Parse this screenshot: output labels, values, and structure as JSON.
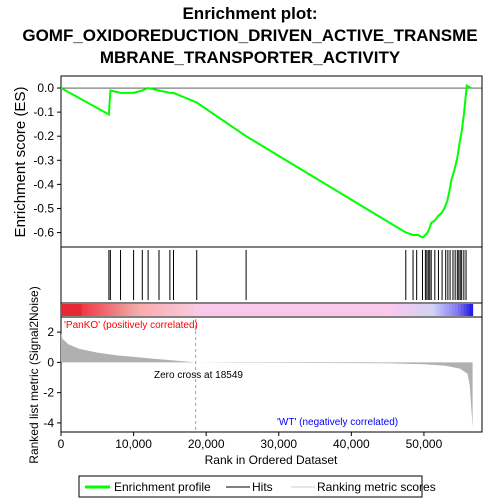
{
  "title_lines": [
    "Enrichment plot:",
    "GOMF_OXIDOREDUCTION_DRIVEN_ACTIVE_TRANSME",
    "MBRANE_TRANSPORTER_ACTIVITY"
  ],
  "colors": {
    "es_line": "#00ff00",
    "hits": "#000000",
    "ranked_fill": "#b0b0b0",
    "pos_label": "#ff0000",
    "neg_label": "#0000ff",
    "zero_cross": "#a0a0a0"
  },
  "chart_data": [
    {
      "type": "line",
      "panel": "enrichment",
      "ylabel": "Enrichment score (ES)",
      "xlim": [
        0,
        58000
      ],
      "ylim": [
        -0.66,
        0.05
      ],
      "yticks": [
        "0.0",
        "-0.1",
        "-0.2",
        "-0.3",
        "-0.4",
        "-0.5",
        "-0.6"
      ],
      "ytick_values": [
        0.0,
        -0.1,
        -0.2,
        -0.3,
        -0.4,
        -0.5,
        -0.6
      ],
      "grid": false,
      "series": [
        {
          "x": [
            0,
            6600,
            6700,
            6800,
            8200,
            10000,
            11200,
            12000,
            13500,
            15000,
            15500,
            18700,
            25500,
            47500,
            48500,
            49200,
            49800,
            50200,
            50500,
            50800,
            51000,
            51500,
            52000,
            52400,
            52800,
            53200,
            53500,
            53800,
            54200,
            54600,
            54900,
            55200,
            55500,
            55700,
            55900,
            56500
          ],
          "y": [
            0.0,
            -0.11,
            -0.06,
            -0.01,
            -0.02,
            -0.02,
            -0.01,
            0.0,
            -0.01,
            -0.02,
            -0.02,
            -0.06,
            -0.2,
            -0.6,
            -0.61,
            -0.61,
            -0.62,
            -0.61,
            -0.6,
            -0.58,
            -0.56,
            -0.55,
            -0.53,
            -0.52,
            -0.5,
            -0.47,
            -0.43,
            -0.38,
            -0.34,
            -0.29,
            -0.23,
            -0.18,
            -0.11,
            -0.05,
            0.01,
            0.0
          ]
        }
      ]
    },
    {
      "type": "scatter",
      "panel": "hits",
      "xlim": [
        0,
        58000
      ],
      "hits": [
        6600,
        6800,
        8200,
        10000,
        11200,
        12000,
        13500,
        15000,
        15500,
        18700,
        25500,
        47500,
        48500,
        49000,
        49800,
        50200,
        50400,
        50600,
        50800,
        51000,
        51500,
        52000,
        52500,
        53000,
        53300,
        53600,
        54000,
        54300,
        54600,
        54800,
        55000,
        55200,
        55500,
        55800
      ]
    },
    {
      "type": "area",
      "panel": "ranked_list",
      "xlabel": "Rank in Ordered Dataset",
      "ylabel": "Ranked list metric (Signal2Noise)",
      "xlim": [
        0,
        58000
      ],
      "ylim": [
        -4.6,
        3.0
      ],
      "xticks": [
        "0",
        "10,000",
        "20,000",
        "30,000",
        "40,000",
        "50,000"
      ],
      "xtick_values": [
        0,
        10000,
        20000,
        30000,
        40000,
        50000
      ],
      "yticks": [
        "2",
        "0",
        "-2",
        "-4"
      ],
      "ytick_values": [
        2,
        0,
        -2,
        -4
      ],
      "x": [
        0,
        200,
        1000,
        2500,
        5000,
        8000,
        12000,
        15000,
        18549,
        25000,
        35000,
        45000,
        50000,
        53000,
        55000,
        56000,
        56300,
        56600,
        56700
      ],
      "values": [
        1.9,
        1.55,
        1.2,
        0.9,
        0.65,
        0.45,
        0.28,
        0.15,
        0.0,
        -0.02,
        -0.04,
        -0.06,
        -0.12,
        -0.22,
        -0.42,
        -0.75,
        -1.5,
        -3.5,
        -4.3
      ],
      "zero_cross_label": "Zero cross at 18549",
      "zero_cross_x": 18549,
      "pos_label": "'PanKO' (positively correlated)",
      "neg_label": "'WT' (negatively correlated)"
    }
  ],
  "legend": {
    "items": [
      {
        "label": "Enrichment profile"
      },
      {
        "label": "Hits"
      },
      {
        "label": "Ranking metric scores"
      }
    ]
  }
}
